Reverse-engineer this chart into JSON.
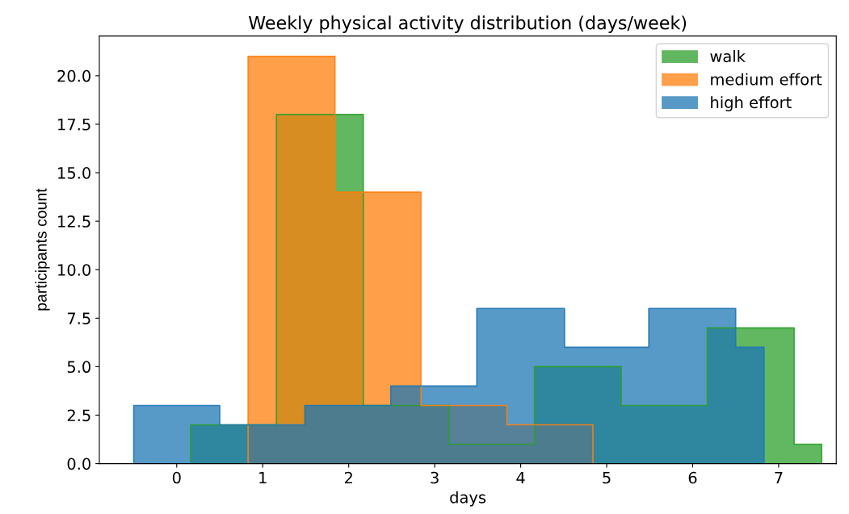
{
  "chart_data": {
    "type": "area",
    "title": "Weekly physical activity distribution (days/week)",
    "xlabel": "days",
    "ylabel": "participants count",
    "series": [
      {
        "name": "walk",
        "color": "#2ca02c",
        "x": [
          0.16,
          0.16,
          1.16,
          1.16,
          2.17,
          2.17,
          3.17,
          3.17,
          4.16,
          4.16,
          5.17,
          5.17,
          6.17,
          6.17,
          7.18,
          7.18,
          7.5,
          7.5
        ],
        "values": [
          0,
          2,
          2,
          18,
          18,
          3,
          3,
          1,
          1,
          5,
          5,
          3,
          3,
          7,
          7,
          1,
          1,
          0
        ]
      },
      {
        "name": "medium effort",
        "color": "#ff7f0e",
        "x": [
          0.83,
          0.83,
          1.84,
          1.84,
          2.84,
          2.84,
          3.84,
          3.84,
          4.84,
          4.84
        ],
        "values": [
          0,
          21,
          21,
          14,
          14,
          3,
          3,
          2,
          2,
          0
        ]
      },
      {
        "name": "high effort",
        "color": "#1f77b4",
        "x": [
          -0.5,
          -0.5,
          0.5,
          0.5,
          1.49,
          1.49,
          2.49,
          2.49,
          3.49,
          3.49,
          4.51,
          4.51,
          5.49,
          5.49,
          6.5,
          6.5,
          6.83,
          6.83
        ],
        "values": [
          0,
          3,
          3,
          2,
          2,
          3,
          3,
          4,
          4,
          8,
          8,
          6,
          6,
          8,
          8,
          6,
          6,
          0
        ]
      }
    ],
    "xlim": [
      -0.9,
      7.67
    ],
    "ylim": [
      0,
      22.05
    ],
    "xticks": [
      0,
      1,
      2,
      3,
      4,
      5,
      6,
      7
    ],
    "yticks": [
      {
        "value": 0,
        "label": "0.0"
      },
      {
        "value": 2.5,
        "label": "2.5"
      },
      {
        "value": 5,
        "label": "5.0"
      },
      {
        "value": 7.5,
        "label": "7.5"
      },
      {
        "value": 10,
        "label": "10.0"
      },
      {
        "value": 12.5,
        "label": "12.5"
      },
      {
        "value": 15,
        "label": "15.0"
      },
      {
        "value": 17.5,
        "label": "17.5"
      },
      {
        "value": 20,
        "label": "20.0"
      }
    ],
    "legend": "top right",
    "grid": false
  }
}
